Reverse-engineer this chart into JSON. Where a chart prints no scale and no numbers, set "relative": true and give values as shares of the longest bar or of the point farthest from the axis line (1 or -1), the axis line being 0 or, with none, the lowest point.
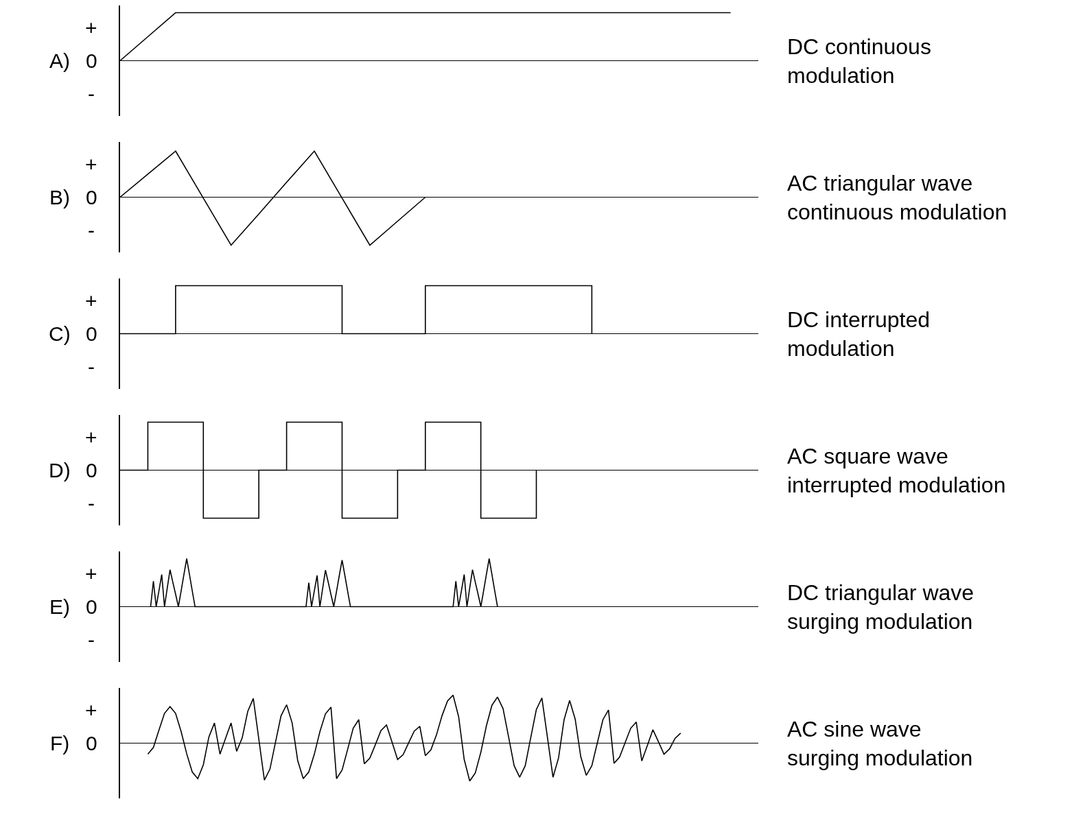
{
  "chart_data": [
    {
      "type": "line",
      "annotations": [
        "A)",
        "+",
        "0",
        "-",
        "DC continuous modulation"
      ],
      "relative": true,
      "categories": [
        null,
        null,
        null,
        null,
        null,
        null,
        null,
        null,
        null,
        null,
        null,
        null,
        null,
        null,
        null,
        null,
        null,
        null,
        null,
        null,
        null,
        null,
        null,
        null
      ],
      "series": [
        {
          "color": "#000000",
          "values": [
            0,
            0.5,
            1,
            1,
            1,
            1,
            1,
            1,
            1,
            1,
            1,
            1,
            1,
            1,
            1,
            1,
            1,
            1,
            1,
            1,
            1,
            1,
            1,
            null
          ]
        }
      ]
    },
    {
      "type": "line",
      "annotations": [
        "B)",
        "+",
        "0",
        "-",
        "AC triangular wave continuous modulation"
      ],
      "relative": true,
      "categories": [
        null,
        null,
        null,
        null,
        null,
        null,
        null,
        null,
        null,
        null,
        null,
        null,
        null,
        null,
        null,
        null,
        null,
        null,
        null,
        null,
        null,
        null,
        null,
        null
      ],
      "series": [
        {
          "color": "#000000",
          "values": [
            0,
            0.48,
            0.96,
            -0.02,
            -1,
            -0.35,
            0.31,
            0.96,
            -0.02,
            -1,
            -0.5,
            0,
            null,
            null,
            null,
            null,
            null,
            null,
            null,
            null,
            null,
            null,
            null,
            null
          ]
        }
      ]
    },
    {
      "type": "step",
      "annotations": [
        "C)",
        "+",
        "0",
        "-",
        "DC interrupted modulation"
      ],
      "relative": true,
      "categories": [
        null,
        null,
        null,
        null,
        null,
        null,
        null,
        null,
        null,
        null,
        null,
        null,
        null,
        null,
        null,
        null,
        null,
        null,
        null,
        null,
        null,
        null,
        null,
        null
      ],
      "series": [
        {
          "color": "#000000",
          "values": [
            0,
            0,
            1,
            1,
            1,
            1,
            1,
            1,
            0,
            0,
            0,
            1,
            1,
            1,
            1,
            1,
            1,
            0,
            null,
            null,
            null,
            null,
            null,
            null
          ]
        }
      ]
    },
    {
      "type": "step",
      "annotations": [
        "D)",
        "+",
        "0",
        "-",
        "AC square wave interrupted modulation"
      ],
      "relative": true,
      "categories": [
        null,
        null,
        null,
        null,
        null,
        null,
        null,
        null,
        null,
        null,
        null,
        null,
        null,
        null,
        null,
        null,
        null,
        null,
        null,
        null,
        null,
        null,
        null,
        null
      ],
      "series": [
        {
          "color": "#000000",
          "values": [
            0,
            1,
            1,
            -1,
            -1,
            0,
            1,
            1,
            -1,
            -1,
            0,
            1,
            1,
            -1,
            -1,
            0,
            null,
            null,
            null,
            null,
            null,
            null,
            null,
            null
          ]
        }
      ]
    },
    {
      "type": "line",
      "annotations": [
        "E)",
        "+",
        "0",
        "-",
        "DC triangular wave surging modulation"
      ],
      "relative": true,
      "categories": [
        null,
        null,
        null,
        null,
        null,
        null,
        null,
        null,
        null,
        null,
        null,
        null,
        null,
        null,
        null,
        null,
        null,
        null,
        null,
        null,
        null,
        null,
        null,
        null,
        null,
        null,
        null,
        null,
        null,
        null,
        null,
        null,
        null,
        null,
        null,
        null,
        null,
        null,
        null,
        null,
        null,
        null,
        null,
        null,
        null,
        null,
        null,
        null,
        null,
        null,
        null,
        null,
        null,
        null,
        null,
        null,
        null,
        null,
        null,
        null,
        null,
        null,
        null,
        null,
        null,
        null,
        null,
        null,
        null,
        null,
        null,
        null,
        null,
        null,
        null,
        null,
        null,
        null,
        null,
        null,
        null,
        null,
        null,
        null,
        null,
        null,
        null,
        null,
        null,
        null,
        null,
        null,
        null,
        null,
        null,
        null,
        null,
        null,
        null,
        null,
        null,
        null,
        null,
        null,
        null,
        null,
        null,
        null,
        null,
        null,
        null,
        null,
        null,
        null,
        null,
        null,
        null,
        null,
        null,
        null,
        null,
        null,
        null,
        null,
        null,
        null,
        null,
        null,
        null,
        null,
        null,
        null,
        null,
        null,
        null,
        null,
        null,
        null,
        null,
        null,
        null,
        null,
        null,
        null,
        null,
        null,
        null,
        null,
        null,
        null,
        null,
        null,
        null,
        null,
        null,
        null,
        null,
        null,
        null,
        null,
        null,
        null,
        null,
        null,
        null,
        null,
        null,
        null,
        null,
        null,
        null,
        null,
        null,
        null,
        null,
        null,
        null,
        null,
        null,
        null,
        null,
        null,
        null,
        null,
        null,
        null,
        null,
        null,
        null,
        null,
        null,
        null,
        null,
        null,
        null,
        null,
        null,
        null,
        null,
        null,
        null,
        null,
        null,
        null,
        null,
        null,
        null,
        null,
        null,
        null,
        null,
        null,
        null,
        null,
        null,
        null,
        null,
        null,
        null,
        null,
        null,
        null,
        null,
        null,
        null,
        null,
        null,
        null,
        null,
        null,
        null
      ],
      "series": [
        {
          "color": "#000000",
          "values": [
            null,
            null,
            null,
            null,
            null,
            null,
            null,
            null,
            null,
            null,
            null,
            0,
            0.53,
            0,
            0.33,
            0.67,
            0,
            0.39,
            0.77,
            0.51,
            0.26,
            0,
            0.33,
            0.67,
            1,
            0.67,
            0.33,
            0,
            0,
            0,
            0,
            0,
            0,
            0,
            0,
            0,
            0,
            0,
            0,
            0,
            0,
            0,
            0,
            0,
            0,
            0,
            0,
            0,
            0,
            0,
            0,
            0,
            0,
            0,
            0,
            0,
            0,
            0,
            0,
            0,
            0,
            0,
            0,
            0,
            0,
            0,
            0,
            0,
            0.5,
            0,
            0.33,
            0.65,
            0,
            0.38,
            0.76,
            0.51,
            0.25,
            0,
            0.32,
            0.65,
            0.97,
            0.65,
            0.32,
            0,
            0,
            0,
            0,
            0,
            0,
            0,
            0,
            0,
            0,
            0,
            0,
            0,
            0,
            0,
            0,
            0,
            0,
            0,
            0,
            0,
            0,
            0,
            0,
            0,
            0,
            0,
            0,
            0,
            0,
            0,
            0,
            0,
            0,
            0,
            0,
            0,
            0,
            0.53,
            0,
            0.33,
            0.67,
            0,
            0.39,
            0.77,
            0.51,
            0.26,
            0,
            0.33,
            0.67,
            1,
            0.67,
            0.33,
            0,
            null,
            null,
            null,
            null,
            null,
            null,
            null,
            null,
            null,
            null,
            null,
            null,
            null,
            null,
            null,
            null,
            null,
            null,
            null,
            null,
            null,
            null,
            null,
            null,
            null,
            null,
            null,
            null,
            null,
            null,
            null,
            null,
            null,
            null,
            null,
            null,
            null,
            null,
            null,
            null,
            null,
            null,
            null,
            null,
            null,
            null,
            null,
            null,
            null,
            null,
            null,
            null,
            null,
            null,
            null,
            null,
            null,
            null,
            null,
            null,
            null,
            null,
            null,
            null,
            null,
            null,
            null,
            null,
            null,
            null,
            null,
            null,
            null,
            null,
            null,
            null,
            null,
            null,
            null,
            null,
            null,
            null,
            null,
            null,
            null,
            null,
            null,
            null,
            null,
            null,
            null,
            null,
            null,
            null
          ]
        }
      ]
    },
    {
      "type": "line",
      "annotations": [
        "F)",
        "+",
        "0",
        "AC sine wave surging modulation"
      ],
      "relative": true,
      "categories": [
        null,
        null,
        null,
        null,
        null,
        null,
        null,
        null,
        null,
        null,
        null,
        null,
        null,
        null,
        null,
        null,
        null,
        null,
        null,
        null,
        null,
        null,
        null,
        null,
        null,
        null,
        null,
        null,
        null,
        null,
        null,
        null,
        null,
        null,
        null,
        null,
        null,
        null,
        null,
        null,
        null,
        null,
        null,
        null,
        null,
        null,
        null,
        null,
        null,
        null,
        null,
        null,
        null,
        null,
        null,
        null,
        null,
        null,
        null,
        null,
        null,
        null,
        null,
        null,
        null,
        null,
        null,
        null,
        null,
        null,
        null,
        null,
        null,
        null,
        null,
        null,
        null,
        null,
        null,
        null,
        null,
        null,
        null,
        null,
        null,
        null,
        null,
        null,
        null,
        null,
        null,
        null,
        null,
        null,
        null,
        null,
        null,
        null,
        null,
        null,
        null,
        null,
        null,
        null,
        null,
        null,
        null,
        null,
        null,
        null,
        null,
        null,
        null,
        null,
        null,
        null
      ],
      "series": [
        {
          "color": "#000000",
          "values": [
            null,
            null,
            null,
            null,
            null,
            -0.23,
            -0.09,
            0.27,
            0.62,
            0.76,
            0.62,
            0.24,
            -0.22,
            -0.6,
            -0.74,
            -0.45,
            0.13,
            0.42,
            -0.23,
            0.1,
            0.42,
            -0.17,
            0.11,
            0.66,
            0.93,
            0.08,
            -0.77,
            -0.54,
            0.02,
            0.57,
            0.8,
            0.42,
            -0.36,
            -0.74,
            -0.6,
            -0.23,
            0.24,
            0.61,
            0.75,
            -0.74,
            -0.56,
            -0.13,
            0.31,
            0.49,
            -0.43,
            -0.31,
            -0.03,
            0.26,
            0.38,
            0.02,
            -0.34,
            -0.24,
            0.01,
            0.25,
            0.35,
            -0.26,
            -0.14,
            0.17,
            0.57,
            0.88,
            1,
            0.55,
            -0.34,
            -0.79,
            -0.62,
            -0.19,
            0.36,
            0.79,
            0.96,
            0.72,
            0.13,
            -0.47,
            -0.71,
            -0.47,
            0.12,
            0.7,
            0.94,
            0.12,
            -0.71,
            -0.31,
            0.49,
            0.89,
            0.5,
            -0.28,
            -0.67,
            -0.47,
            0.01,
            0.49,
            0.69,
            -0.42,
            -0.29,
            0.01,
            0.31,
            0.44,
            -0.37,
            -0.05,
            0.28,
            0.03,
            -0.23,
            -0.12,
            0.1,
            0.21,
            null,
            null,
            null,
            null,
            null,
            null,
            null,
            null,
            null,
            null,
            null,
            null,
            null,
            null
          ]
        }
      ]
    }
  ]
}
